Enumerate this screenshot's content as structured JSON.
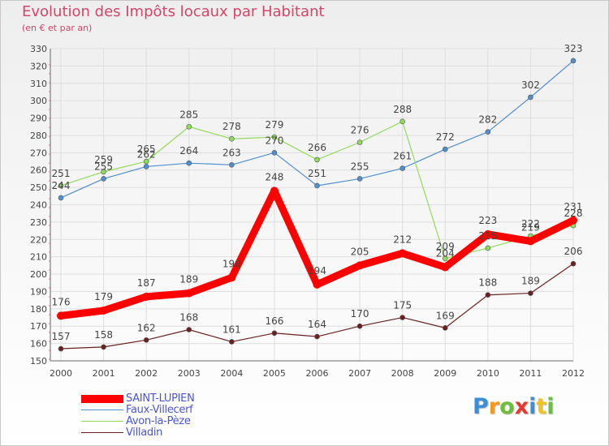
{
  "title": "Evolution des Impôts locaux par Habitant",
  "subtitle": "(en € et par an)",
  "logo": {
    "text": "Proxiti",
    "letters": [
      {
        "ch": "P",
        "color": "#3a8fd6"
      },
      {
        "ch": "r",
        "color": "#f29a1f"
      },
      {
        "ch": "o",
        "color": "#6cbf3a"
      },
      {
        "ch": "x",
        "color": "#e33a2f"
      },
      {
        "ch": "i",
        "color": "#3a8fd6"
      },
      {
        "ch": "t",
        "color": "#f2c21f"
      },
      {
        "ch": "i",
        "color": "#6cbf3a"
      }
    ]
  },
  "chart_data": {
    "type": "line",
    "title": "Evolution des Impôts locaux par Habitant",
    "subtitle": "(en € et par an)",
    "categories": [
      "2000",
      "2001",
      "2002",
      "2003",
      "2004",
      "2005",
      "2006",
      "2007",
      "2008",
      "2009",
      "2010",
      "2011",
      "2012"
    ],
    "ylim": [
      150,
      330
    ],
    "yticks": [
      150,
      160,
      170,
      180,
      190,
      200,
      210,
      220,
      230,
      240,
      250,
      260,
      270,
      280,
      290,
      300,
      310,
      320,
      330
    ],
    "grid": true,
    "legend_position": "bottom-left",
    "series": [
      {
        "name": "SAINT-LUPIEN",
        "color": "#ff0000",
        "values": [
          176,
          179,
          187,
          189,
          198,
          248,
          194,
          205,
          212,
          204,
          223,
          219,
          231
        ],
        "labels": [
          "176",
          "179",
          "187",
          "189",
          "198",
          "248",
          "194",
          "205",
          "212",
          "204",
          "223",
          "219",
          "231"
        ]
      },
      {
        "name": "Faux-Villecerf",
        "color": "#4f8fcf",
        "values": [
          244,
          255,
          262,
          264,
          263,
          270,
          251,
          255,
          261,
          272,
          282,
          302,
          323
        ],
        "labels": [
          "244",
          "255",
          "262",
          "264",
          "263",
          "270",
          "251",
          "255",
          "261",
          "272",
          "282",
          "302",
          "323"
        ]
      },
      {
        "name": "Avon-la-Pèze",
        "color": "#8fdc5a",
        "values": [
          251,
          259,
          265,
          285,
          278,
          279,
          266,
          276,
          288,
          209,
          215,
          222,
          228
        ],
        "labels": [
          "251",
          "259",
          "265",
          "285",
          "278",
          "279",
          "266",
          "276",
          "288",
          "209",
          "215",
          "222",
          "228"
        ]
      },
      {
        "name": "Villadin",
        "color": "#6b2020",
        "values": [
          157,
          158,
          162,
          168,
          161,
          166,
          164,
          170,
          175,
          169,
          188,
          189,
          206
        ],
        "labels": [
          "157",
          "158",
          "162",
          "168",
          "161",
          "166",
          "164",
          "170",
          "175",
          "169",
          "188",
          "189",
          "206"
        ]
      }
    ]
  }
}
